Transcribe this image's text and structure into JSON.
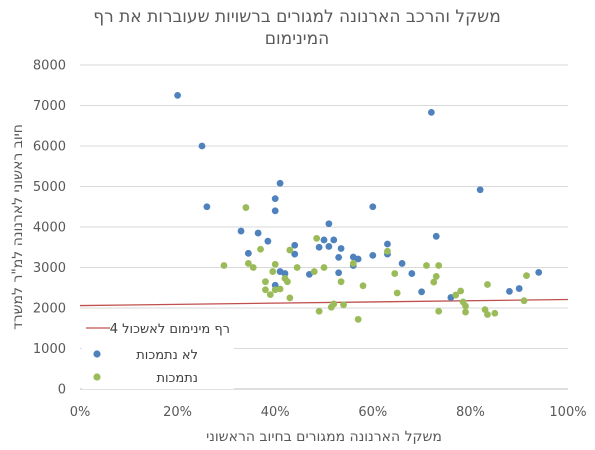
{
  "chart_data": {
    "type": "scatter",
    "title_lines": [
      "משקל והרכב הארנונה למגורים ברשויות שעוברות את רף",
      "המינימום"
    ],
    "xlabel": "משקל הארנונה ממגורים בחיוב הראשוני",
    "ylabel": "חיוב ראשוני לארנונה למ\"ר למשרד",
    "xlim": [
      0,
      1
    ],
    "ylim": [
      0,
      8000
    ],
    "x_ticks": [
      "0%",
      "20%",
      "40%",
      "60%",
      "80%",
      "100%"
    ],
    "y_ticks": [
      "0",
      "1000",
      "2000",
      "3000",
      "4000",
      "5000",
      "6000",
      "7000",
      "8000"
    ],
    "grid": "horizontal",
    "legend_position": "bottom-left",
    "line": {
      "name": "רף מינימום לאשכול 4",
      "color": "#C0504D",
      "points": [
        [
          0,
          2060
        ],
        [
          1,
          2210
        ]
      ]
    },
    "series": [
      {
        "name": "לא נתמכות",
        "color": "#4F81BD",
        "points": [
          [
            0.2,
            7250
          ],
          [
            0.25,
            6000
          ],
          [
            0.26,
            4500
          ],
          [
            0.33,
            3900
          ],
          [
            0.345,
            3350
          ],
          [
            0.365,
            3850
          ],
          [
            0.385,
            3650
          ],
          [
            0.4,
            4700
          ],
          [
            0.4,
            4400
          ],
          [
            0.41,
            5080
          ],
          [
            0.41,
            2900
          ],
          [
            0.42,
            2850
          ],
          [
            0.44,
            3550
          ],
          [
            0.44,
            3330
          ],
          [
            0.4,
            2560
          ],
          [
            0.49,
            3500
          ],
          [
            0.5,
            3680
          ],
          [
            0.51,
            4080
          ],
          [
            0.51,
            3520
          ],
          [
            0.52,
            3680
          ],
          [
            0.53,
            3250
          ],
          [
            0.535,
            3470
          ],
          [
            0.47,
            2830
          ],
          [
            0.53,
            2870
          ],
          [
            0.56,
            3260
          ],
          [
            0.56,
            3050
          ],
          [
            0.57,
            3210
          ],
          [
            0.6,
            4500
          ],
          [
            0.6,
            3300
          ],
          [
            0.63,
            3580
          ],
          [
            0.63,
            3330
          ],
          [
            0.66,
            3100
          ],
          [
            0.68,
            2850
          ],
          [
            0.7,
            2400
          ],
          [
            0.72,
            6830
          ],
          [
            0.73,
            3770
          ],
          [
            0.76,
            2260
          ],
          [
            0.82,
            4920
          ],
          [
            0.88,
            2410
          ],
          [
            0.9,
            2480
          ],
          [
            0.94,
            2880
          ]
        ]
      },
      {
        "name": "נתמכות",
        "color": "#9BBB59",
        "points": [
          [
            0.295,
            3050
          ],
          [
            0.34,
            4480
          ],
          [
            0.345,
            3100
          ],
          [
            0.355,
            3000
          ],
          [
            0.38,
            2650
          ],
          [
            0.38,
            2450
          ],
          [
            0.39,
            2330
          ],
          [
            0.395,
            2900
          ],
          [
            0.4,
            2450
          ],
          [
            0.4,
            3080
          ],
          [
            0.41,
            2470
          ],
          [
            0.42,
            2730
          ],
          [
            0.425,
            2650
          ],
          [
            0.43,
            2250
          ],
          [
            0.43,
            3430
          ],
          [
            0.445,
            3000
          ],
          [
            0.37,
            3450
          ],
          [
            0.48,
            2900
          ],
          [
            0.485,
            3720
          ],
          [
            0.49,
            1920
          ],
          [
            0.5,
            3000
          ],
          [
            0.515,
            2020
          ],
          [
            0.52,
            2100
          ],
          [
            0.535,
            2650
          ],
          [
            0.54,
            2080
          ],
          [
            0.56,
            3100
          ],
          [
            0.57,
            1720
          ],
          [
            0.58,
            2550
          ],
          [
            0.63,
            3400
          ],
          [
            0.645,
            2850
          ],
          [
            0.65,
            2370
          ],
          [
            0.71,
            3050
          ],
          [
            0.725,
            2640
          ],
          [
            0.73,
            2780
          ],
          [
            0.735,
            1920
          ],
          [
            0.735,
            3050
          ],
          [
            0.77,
            2320
          ],
          [
            0.78,
            2420
          ],
          [
            0.785,
            2150
          ],
          [
            0.79,
            1900
          ],
          [
            0.79,
            2050
          ],
          [
            0.83,
            1960
          ],
          [
            0.835,
            1840
          ],
          [
            0.835,
            2580
          ],
          [
            0.85,
            1870
          ],
          [
            0.91,
            2180
          ],
          [
            0.915,
            2800
          ]
        ]
      }
    ]
  }
}
